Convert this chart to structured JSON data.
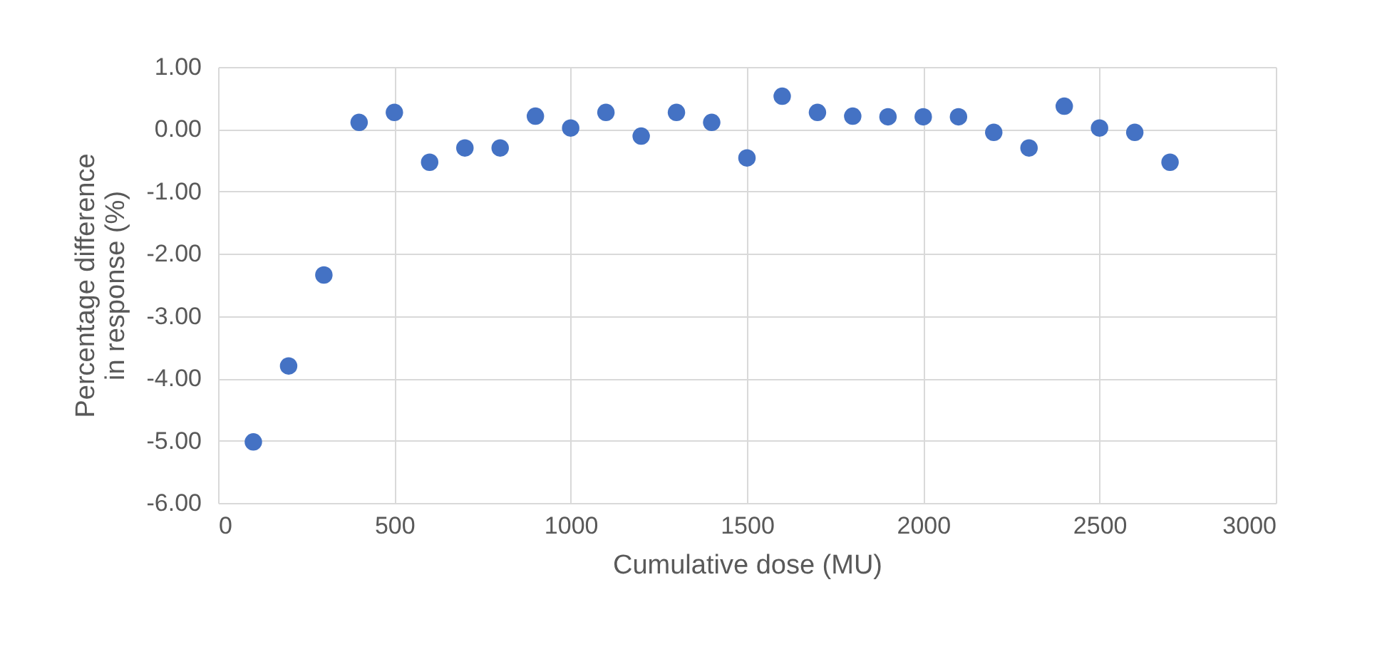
{
  "chart_data": {
    "type": "scatter",
    "xlabel": "Cumulative dose (MU)",
    "ylabel": "Percentage difference in response (%)",
    "x": [
      100,
      200,
      300,
      400,
      500,
      600,
      700,
      800,
      900,
      1000,
      1100,
      1200,
      1300,
      1400,
      1500,
      1600,
      1700,
      1800,
      1900,
      2000,
      2100,
      2200,
      2300,
      2400,
      2500,
      2600,
      2700
    ],
    "series": [
      {
        "color": "#4472c4",
        "values": [
          -5.02,
          -3.8,
          -2.34,
          0.11,
          0.27,
          -0.53,
          -0.3,
          -0.3,
          0.21,
          0.02,
          0.27,
          -0.11,
          0.27,
          0.11,
          -0.46,
          0.53,
          0.27,
          0.21,
          0.2,
          0.2,
          0.2,
          -0.05,
          -0.3,
          0.37,
          0.02,
          -0.05,
          -0.53
        ]
      }
    ],
    "xlim": [
      0,
      3000
    ],
    "xticks": [
      0,
      500,
      1000,
      1500,
      2000,
      2500,
      3000
    ],
    "ylim": [
      -6,
      1
    ],
    "yticks": [
      {
        "value": -6,
        "label": "-6.00"
      },
      {
        "value": -5,
        "label": "-5.00"
      },
      {
        "value": -4,
        "label": "-4.00"
      },
      {
        "value": -3,
        "label": "-3.00"
      },
      {
        "value": -2,
        "label": "-2.00"
      },
      {
        "value": -1,
        "label": "-1.00"
      },
      {
        "value": 0,
        "label": "0.00"
      },
      {
        "value": 1,
        "label": "1.00"
      }
    ],
    "grid": true,
    "marker": "circle"
  }
}
